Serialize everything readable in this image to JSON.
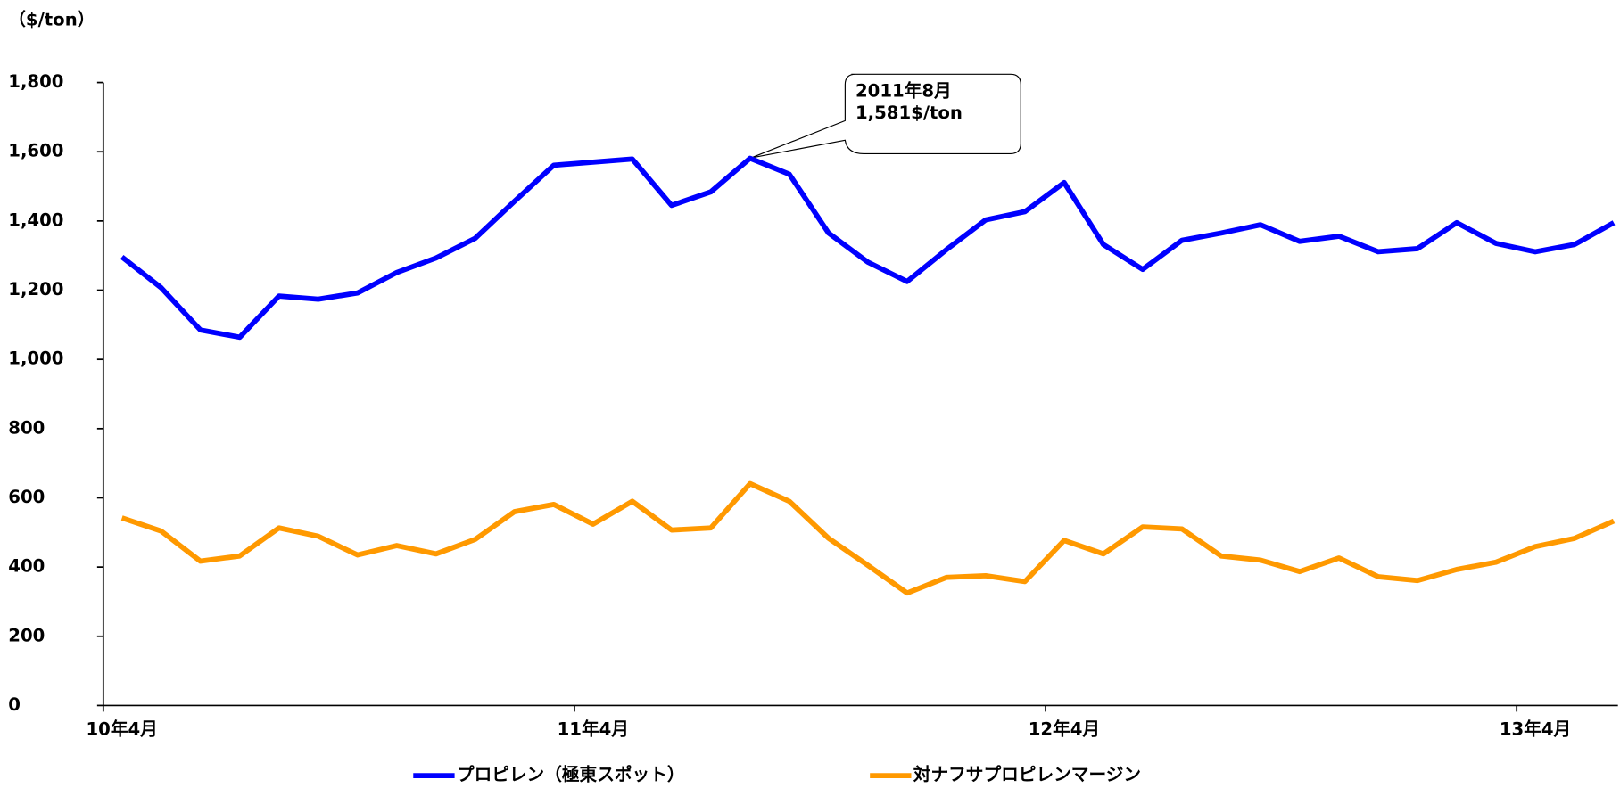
{
  "chart_data": {
    "type": "line",
    "unit_label": "（$/ton）",
    "categories": [
      "10年4月",
      null,
      null,
      null,
      null,
      null,
      null,
      null,
      null,
      null,
      null,
      null,
      "11年4月",
      null,
      null,
      null,
      null,
      null,
      null,
      null,
      null,
      null,
      null,
      null,
      "12年4月",
      null,
      null,
      null,
      null,
      null,
      null,
      null,
      null,
      null,
      null,
      null,
      "13年4月",
      null,
      null
    ],
    "series": [
      {
        "name": "プロピレン（極東スポット）",
        "color": "#0000ff",
        "values": [
          1296,
          1207,
          1085,
          1064,
          1183,
          1174,
          1192,
          1251,
          1293,
          1350,
          1457,
          1561,
          1570,
          1579,
          1445,
          1484,
          1581,
          1535,
          1365,
          1281,
          1225,
          1317,
          1403,
          1427,
          1511,
          1332,
          1260,
          1344,
          1365,
          1389,
          1341,
          1356,
          1311,
          1320,
          1395,
          1335,
          1311,
          1332,
          1395
        ]
      },
      {
        "name": "対ナフサプロピレンマージン",
        "color": "#ff9900",
        "values": [
          542,
          504,
          417,
          432,
          513,
          489,
          435,
          462,
          438,
          480,
          560,
          581,
          524,
          590,
          507,
          513,
          641,
          590,
          483,
          405,
          325,
          370,
          375,
          358,
          477,
          438,
          516,
          510,
          432,
          420,
          387,
          426,
          372,
          361,
          393,
          414,
          459,
          483,
          533
        ]
      }
    ],
    "ylim": [
      0,
      1800
    ],
    "yticks": [
      0,
      200,
      400,
      600,
      800,
      {
        "value": 1000,
        "label": "1,000"
      },
      {
        "value": 1200,
        "label": "1,200"
      },
      {
        "value": 1400,
        "label": "1,400"
      },
      {
        "value": 1600,
        "label": "1,600"
      },
      {
        "value": 1800,
        "label": "1,800"
      }
    ],
    "annotation": [
      "2011年8月",
      "1,581$/ton"
    ]
  }
}
